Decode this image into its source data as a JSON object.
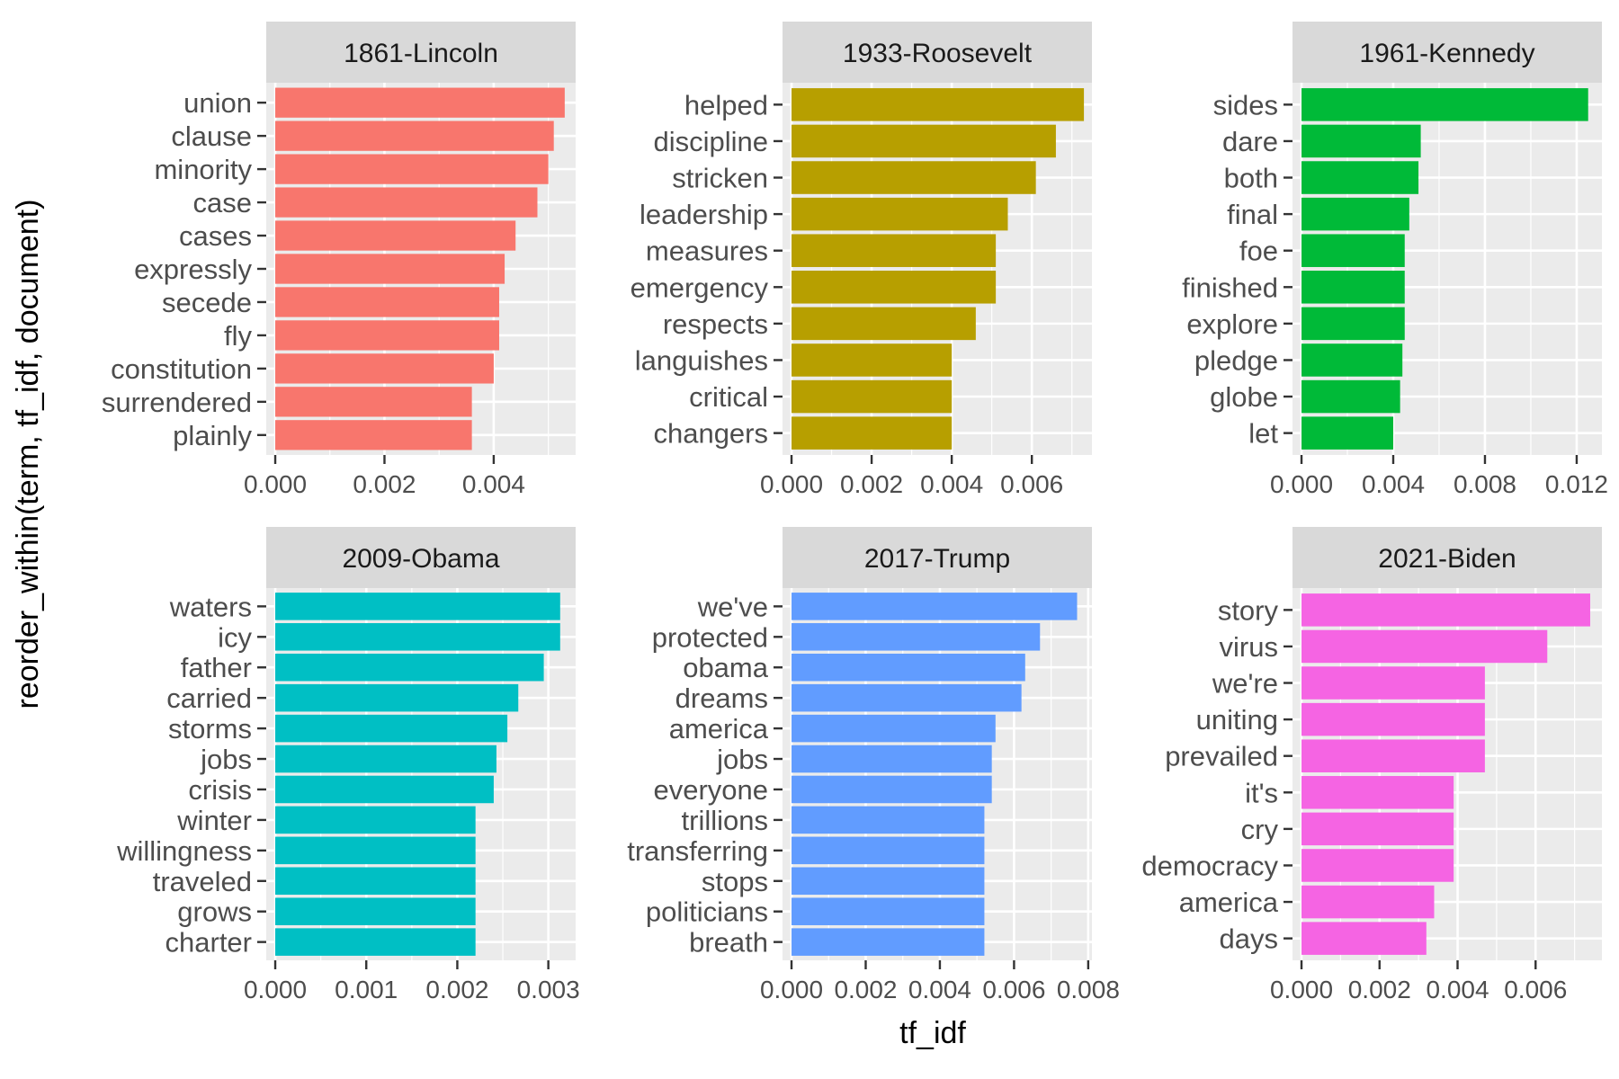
{
  "chart_data": {
    "type": "bar",
    "orientation": "horizontal",
    "xlabel": "tf_idf",
    "ylabel": "reorder_within(term, tf_idf, document)",
    "grid": true,
    "legend": "none",
    "facets": [
      {
        "title": "1861-Lincoln",
        "color": "#F8766D",
        "xlim": [
          0,
          0.0055
        ],
        "ticks": [
          0.0,
          0.002,
          0.004
        ],
        "tick_labels": [
          "0.000",
          "0.002",
          "0.004"
        ],
        "categories": [
          "union",
          "clause",
          "minority",
          "case",
          "cases",
          "expressly",
          "secede",
          "fly",
          "constitution",
          "surrendered",
          "plainly"
        ],
        "values": [
          0.0053,
          0.0051,
          0.005,
          0.0048,
          0.0044,
          0.0042,
          0.0041,
          0.0041,
          0.004,
          0.0036,
          0.0036
        ]
      },
      {
        "title": "1933-Roosevelt",
        "color": "#B79F00",
        "xlim": [
          0,
          0.0075
        ],
        "ticks": [
          0.0,
          0.002,
          0.004,
          0.006
        ],
        "tick_labels": [
          "0.000",
          "0.002",
          "0.004",
          "0.006"
        ],
        "categories": [
          "helped",
          "discipline",
          "stricken",
          "leadership",
          "measures",
          "emergency",
          "respects",
          "languishes",
          "critical",
          "changers"
        ],
        "values": [
          0.0073,
          0.0066,
          0.0061,
          0.0054,
          0.0051,
          0.0051,
          0.0046,
          0.004,
          0.004,
          0.004
        ]
      },
      {
        "title": "1961-Kennedy",
        "color": "#00BA38",
        "xlim": [
          0,
          0.0131
        ],
        "ticks": [
          0.0,
          0.004,
          0.008,
          0.012
        ],
        "tick_labels": [
          "0.000",
          "0.004",
          "0.008",
          "0.012"
        ],
        "categories": [
          "sides",
          "dare",
          "both",
          "final",
          "foe",
          "finished",
          "explore",
          "pledge",
          "globe",
          "let"
        ],
        "values": [
          0.0125,
          0.0052,
          0.0051,
          0.0047,
          0.0045,
          0.0045,
          0.0045,
          0.0044,
          0.0043,
          0.004
        ]
      },
      {
        "title": "2009-Obama",
        "color": "#00BFC4",
        "xlim": [
          0,
          0.0033
        ],
        "ticks": [
          0.0,
          0.001,
          0.002,
          0.003
        ],
        "tick_labels": [
          "0.000",
          "0.001",
          "0.002",
          "0.003"
        ],
        "categories": [
          "waters",
          "icy",
          "father",
          "carried",
          "storms",
          "jobs",
          "crisis",
          "winter",
          "willingness",
          "traveled",
          "grows",
          "charter"
        ],
        "values": [
          0.00313,
          0.00313,
          0.00295,
          0.00267,
          0.00255,
          0.00243,
          0.0024,
          0.0022,
          0.0022,
          0.0022,
          0.0022,
          0.0022
        ]
      },
      {
        "title": "2017-Trump",
        "color": "#619CFF",
        "xlim": [
          0,
          0.0081
        ],
        "ticks": [
          0.0,
          0.002,
          0.004,
          0.006,
          0.008
        ],
        "tick_labels": [
          "0.000",
          "0.002",
          "0.004",
          "0.006",
          "0.008"
        ],
        "categories": [
          "we've",
          "protected",
          "obama",
          "dreams",
          "america",
          "jobs",
          "everyone",
          "trillions",
          "transferring",
          "stops",
          "politicians",
          "breath"
        ],
        "values": [
          0.0077,
          0.0067,
          0.0063,
          0.0062,
          0.0055,
          0.0054,
          0.0054,
          0.0052,
          0.0052,
          0.0052,
          0.0052,
          0.0052
        ]
      },
      {
        "title": "2021-Biden",
        "color": "#F564E3",
        "xlim": [
          0,
          0.0077
        ],
        "ticks": [
          0.0,
          0.002,
          0.004,
          0.006
        ],
        "tick_labels": [
          "0.000",
          "0.002",
          "0.004",
          "0.006"
        ],
        "categories": [
          "story",
          "virus",
          "we're",
          "uniting",
          "prevailed",
          "it's",
          "cry",
          "democracy",
          "america",
          "days"
        ],
        "values": [
          0.0074,
          0.0063,
          0.0047,
          0.0047,
          0.0047,
          0.0039,
          0.0039,
          0.0039,
          0.0034,
          0.0032
        ]
      }
    ]
  }
}
